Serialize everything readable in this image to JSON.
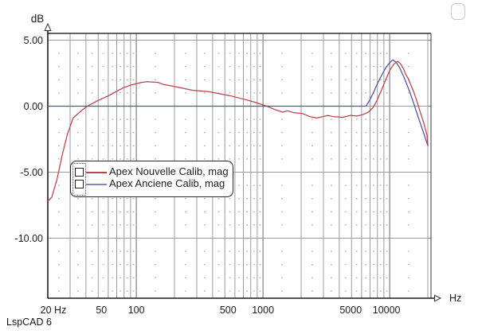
{
  "footer": {
    "app_label": "LspCAD 6"
  },
  "window": {
    "corner_button": ""
  },
  "legend": {
    "entries": [
      {
        "label": "Apex Nouvelle Calib, mag",
        "color": "#c04149"
      },
      {
        "label": "Apex Anciene Calib, mag",
        "color": "#8385c4"
      }
    ]
  },
  "chart_data": {
    "type": "line",
    "title": "",
    "x_axis": {
      "label": "Hz",
      "scale": "log",
      "min": 20,
      "max": 20000,
      "ticks": [
        {
          "value": 20,
          "label": "20 Hz",
          "dx": 7
        },
        {
          "value": 50,
          "label": "50",
          "dx": 4
        },
        {
          "value": 100,
          "label": "100",
          "dx": 0
        },
        {
          "value": 500,
          "label": "500",
          "dx": 4
        },
        {
          "value": 1000,
          "label": "1000",
          "dx": 0
        },
        {
          "value": 5000,
          "label": "5000",
          "dx": -1
        },
        {
          "value": 10000,
          "label": "10000",
          "dx": -4
        }
      ],
      "gridlines": [
        30,
        40,
        50,
        60,
        70,
        80,
        90,
        100,
        200,
        300,
        400,
        500,
        600,
        700,
        800,
        900,
        1000,
        2000,
        3000,
        4000,
        5000,
        6000,
        7000,
        8000,
        9000,
        10000,
        20000
      ],
      "decade_lines": [
        100,
        1000,
        10000
      ]
    },
    "y_axis": {
      "label": "dB",
      "min": -14.6,
      "max": 5.5,
      "minor_step": 1,
      "ticks": [
        {
          "value": 5,
          "label": "5.00"
        },
        {
          "value": 0,
          "label": "0.00"
        },
        {
          "value": -5,
          "label": "-5.00"
        },
        {
          "value": -10,
          "label": "-10.00"
        }
      ]
    },
    "grid": {
      "major_color": "#9b9b9b",
      "decade_color": "#8c8c8c",
      "dot_color": "#ababab",
      "frame_color": "#2e2e2e",
      "axis_color": "#1c1c1c",
      "text_color": "#1b1b1b"
    },
    "series": [
      {
        "name": "Apex Nouvelle Calib, mag",
        "color": "#bf4048",
        "points": [
          [
            20,
            -7.2
          ],
          [
            21.5,
            -6.9
          ],
          [
            23.7,
            -5.5
          ],
          [
            26,
            -3.7
          ],
          [
            28.6,
            -2.1
          ],
          [
            31.7,
            -0.9
          ],
          [
            36.7,
            -0.35
          ],
          [
            41,
            0.0
          ],
          [
            49,
            0.4
          ],
          [
            62,
            0.85
          ],
          [
            79,
            1.4
          ],
          [
            91,
            1.6
          ],
          [
            110,
            1.8
          ],
          [
            122,
            1.85
          ],
          [
            148,
            1.8
          ],
          [
            163,
            1.65
          ],
          [
            209,
            1.45
          ],
          [
            280,
            1.2
          ],
          [
            372,
            1.1
          ],
          [
            543,
            0.8
          ],
          [
            725,
            0.5
          ],
          [
            860,
            0.3
          ],
          [
            1070,
            0.0
          ],
          [
            1240,
            -0.25
          ],
          [
            1430,
            -0.45
          ],
          [
            1560,
            -0.35
          ],
          [
            1760,
            -0.5
          ],
          [
            2040,
            -0.55
          ],
          [
            2360,
            -0.8
          ],
          [
            2660,
            -0.9
          ],
          [
            2940,
            -0.8
          ],
          [
            3250,
            -0.7
          ],
          [
            3650,
            -0.8
          ],
          [
            4240,
            -0.85
          ],
          [
            4900,
            -0.7
          ],
          [
            5500,
            -0.75
          ],
          [
            6100,
            -0.65
          ],
          [
            6800,
            -0.45
          ],
          [
            7400,
            -0.1
          ],
          [
            7900,
            0.4
          ],
          [
            8600,
            1.2
          ],
          [
            9300,
            2.0
          ],
          [
            10000,
            2.7
          ],
          [
            10800,
            3.2
          ],
          [
            11600,
            3.4
          ],
          [
            12200,
            3.2
          ],
          [
            12900,
            2.8
          ],
          [
            13400,
            2.4
          ],
          [
            13900,
            2.15
          ],
          [
            14700,
            1.6
          ],
          [
            15600,
            1.0
          ],
          [
            16500,
            0.3
          ],
          [
            17500,
            -0.5
          ],
          [
            18600,
            -1.3
          ],
          [
            19700,
            -2.2
          ],
          [
            20000,
            -2.9
          ]
        ]
      },
      {
        "name": "Apex Anciene Calib, mag",
        "color": "#4f51a6",
        "points": [
          [
            20,
            0.0
          ],
          [
            6500,
            0.0
          ],
          [
            7000,
            0.5
          ],
          [
            7500,
            1.1
          ],
          [
            8000,
            1.7
          ],
          [
            8600,
            2.3
          ],
          [
            9300,
            2.9
          ],
          [
            10000,
            3.3
          ],
          [
            10600,
            3.5
          ],
          [
            11300,
            3.3
          ],
          [
            12000,
            2.9
          ],
          [
            12800,
            2.3
          ],
          [
            13600,
            1.7
          ],
          [
            14500,
            1.0
          ],
          [
            15500,
            0.2
          ],
          [
            16500,
            -0.6
          ],
          [
            17600,
            -1.4
          ],
          [
            18800,
            -2.2
          ],
          [
            20000,
            -3.0
          ]
        ]
      }
    ]
  }
}
